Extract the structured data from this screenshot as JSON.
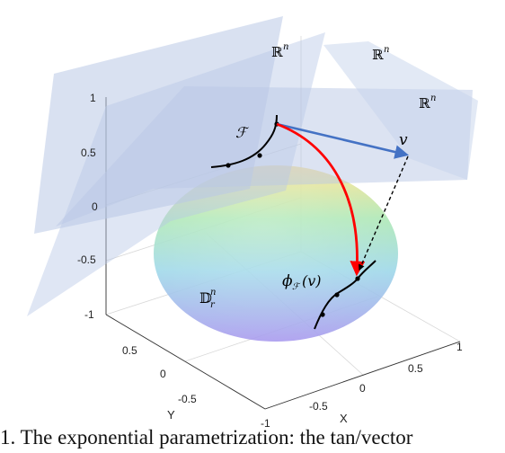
{
  "figure": {
    "plane_labels": [
      "ℝ",
      "ℝ",
      "ℝ"
    ],
    "plane_label_sup": "n",
    "foliation_label": "ℱ",
    "vector_label": "v",
    "map_label_prefix": "ϕ",
    "map_label_sub": "ℱ",
    "map_label_arg": "(v)",
    "ball_label": "𝔻",
    "ball_label_sub": "r",
    "ball_label_sup": "n",
    "z_ticks": [
      "1",
      "0.5",
      "0",
      "-0.5",
      "-1"
    ],
    "y_ticks": [
      "0.5",
      "0",
      "-0.5"
    ],
    "x_ticks": [
      "1",
      "0.5",
      "0",
      "-0.5",
      "-1"
    ],
    "x_axis_label": "X",
    "y_axis_label": "Y",
    "colors": {
      "plane": "#b9c8e6",
      "vector": "#4472c4",
      "geodesic": "#ff0000",
      "curve": "#000000"
    }
  },
  "caption": "1. The exponential parametrization: the tan/vector"
}
